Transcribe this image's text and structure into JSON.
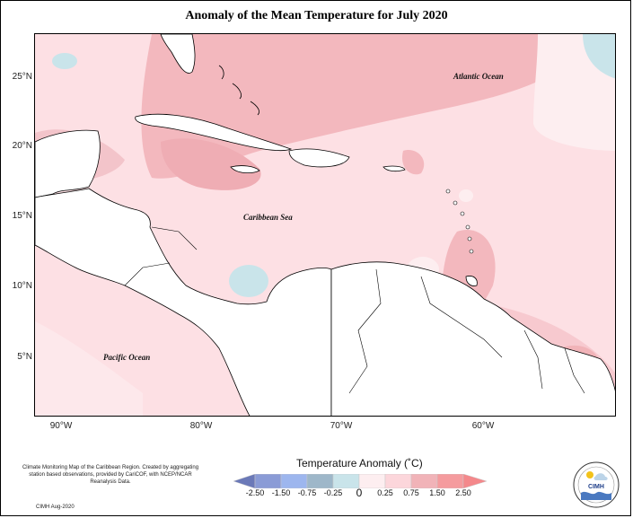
{
  "title": "Anomaly of the Mean Temperature for July 2020",
  "lat_labels": [
    "25°N",
    "20°N",
    "15°N",
    "10°N",
    "5°N"
  ],
  "lon_labels": [
    "90°W",
    "80°W",
    "70°W",
    "60°W"
  ],
  "ocean_labels": {
    "atlantic": "Atlantic Ocean",
    "caribbean": "Caribbean Sea",
    "pacific": "Pacific Ocean"
  },
  "legend": {
    "title": "Temperature Anomaly (˚C)",
    "ticks": [
      "-2.50",
      "-1.50",
      "-0.75",
      "-0.25",
      "0",
      "0.25",
      "0.75",
      "1.50",
      "2.50"
    ],
    "colors": [
      "#6b79b8",
      "#8a9bd6",
      "#9db6ee",
      "#9eb7c9",
      "#c9e4ea",
      "#fdeef0",
      "#fcd6db",
      "#f1b3b8",
      "#f59b9e",
      "#f4888b"
    ]
  },
  "credit": {
    "text": "Climate Monitoring Map of the Caribbean Region. Created by aggregating station based observations, provided by CariCOF, with NCEP/NCAR Reanalysis Data.",
    "date": "CIMH Aug-2020"
  },
  "logo": {
    "text": "CIMH",
    "icon": "cimh-logo-icon"
  }
}
